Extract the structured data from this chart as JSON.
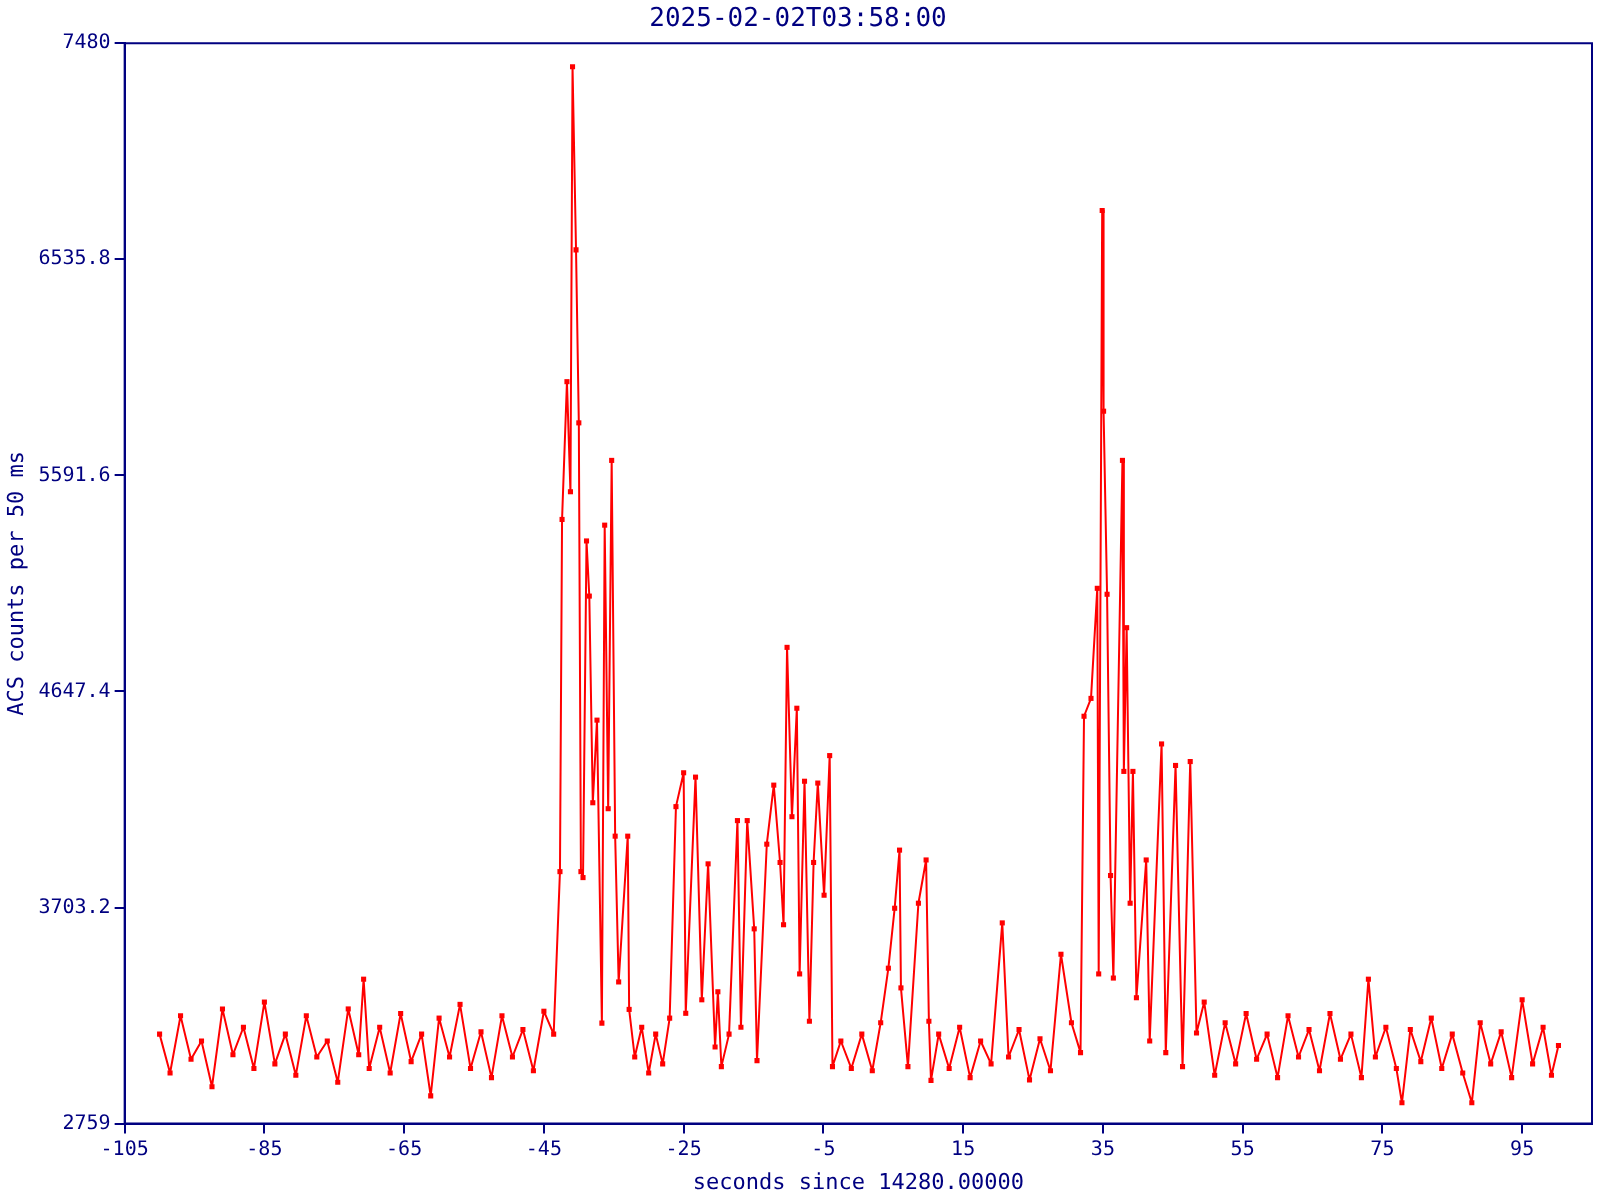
{
  "chart_data": {
    "type": "line",
    "title": "2025-02-02T03:58:00",
    "xlabel": "seconds since 14280.00000",
    "ylabel": "ACS counts per 50 ms",
    "x": [
      -100,
      -98.5,
      -97,
      -95.5,
      -94,
      -92.5,
      -91,
      -89.5,
      -88,
      -86.5,
      -85,
      -83.5,
      -82,
      -80.5,
      -79,
      -77.5,
      -76,
      -74.5,
      -73,
      -71.5,
      -70.8,
      -70,
      -68.5,
      -67,
      -65.5,
      -64,
      -62.5,
      -61.2,
      -60,
      -58.5,
      -57,
      -55.5,
      -54,
      -52.5,
      -51,
      -49.5,
      -48,
      -46.5,
      -45,
      -43.6,
      -42.7,
      -42.4,
      -41.7,
      -41.2,
      -40.9,
      -40.4,
      -40.0,
      -39.7,
      -39.4,
      -38.9,
      -38.5,
      -38.0,
      -37.4,
      -36.7,
      -36.3,
      -35.8,
      -35.3,
      -34.8,
      -34.3,
      -33.0,
      -32.8,
      -32.0,
      -31,
      -30,
      -29,
      -28,
      -27,
      -26.1,
      -25.0,
      -24.7,
      -23.3,
      -22.4,
      -21.5,
      -20.5,
      -20.1,
      -19.6,
      -18.5,
      -17.3,
      -16.8,
      -15.9,
      -14.9,
      -14.5,
      -13.1,
      -12.1,
      -11.2,
      -10.7,
      -10.2,
      -9.5,
      -8.8,
      -8.4,
      -7.7,
      -7.0,
      -6.4,
      -5.8,
      -4.9,
      -4.1,
      -3.7,
      -2.5,
      -1,
      0.5,
      2,
      3.2,
      4.3,
      5.2,
      5.9,
      6.1,
      7.1,
      8.6,
      9.7,
      10.1,
      10.4,
      11.5,
      13,
      14.5,
      16,
      17.5,
      19,
      20.6,
      21.5,
      23,
      24.5,
      26,
      27.5,
      29.0,
      30.5,
      31.8,
      32.3,
      33.3,
      34.2,
      34.4,
      34.9,
      35.1,
      35.6,
      36.1,
      36.5,
      37.8,
      38.0,
      38.4,
      38.9,
      39.3,
      39.8,
      41.2,
      41.7,
      43.4,
      44.0,
      45.4,
      46.4,
      47.5,
      48.4,
      49.5,
      51,
      52.5,
      54,
      55.5,
      57,
      58.5,
      60,
      61.5,
      63,
      64.5,
      66,
      67.5,
      69,
      70.5,
      72,
      73.0,
      74,
      75.5,
      77,
      77.8,
      79,
      80.5,
      82,
      83.5,
      85,
      86.5,
      87.8,
      89,
      90.5,
      92,
      93.5,
      95,
      96.5,
      98,
      99.2,
      100.2
    ],
    "values": [
      3150,
      2980,
      3230,
      3040,
      3120,
      2920,
      3260,
      3060,
      3180,
      3000,
      3290,
      3020,
      3150,
      2970,
      3230,
      3050,
      3120,
      2940,
      3260,
      3060,
      3390,
      3000,
      3180,
      2980,
      3240,
      3030,
      3150,
      2880,
      3220,
      3050,
      3280,
      3000,
      3160,
      2960,
      3230,
      3050,
      3170,
      2990,
      3250,
      3150,
      3860,
      5399,
      6001,
      5520,
      7377,
      6577,
      5821,
      3860,
      3834,
      5305,
      5064,
      4161,
      4522,
      3198,
      5374,
      4135,
      5657,
      4015,
      3378,
      4015,
      3258,
      3050,
      3180,
      2980,
      3150,
      3020,
      3220,
      4144,
      4292,
      3241,
      4273,
      3300,
      3894,
      3094,
      3335,
      3008,
      3150,
      4083,
      3180,
      4083,
      3610,
      3034,
      3980,
      4238,
      3900,
      3628,
      4840,
      4100,
      4574,
      3413,
      4255,
      3206,
      3900,
      4247,
      3757,
      4367,
      3008,
      3120,
      3000,
      3150,
      2990,
      3200,
      3438,
      3700,
      3954,
      3352,
      3008,
      3722,
      3911,
      3206,
      2948,
      3150,
      3000,
      3180,
      2960,
      3120,
      3020,
      3636,
      3050,
      3170,
      2950,
      3130,
      2990,
      3499,
      3200,
      3069,
      4539,
      4617,
      5098,
      3413,
      6749,
      5872,
      5072,
      3843,
      3395,
      5657,
      4298,
      4926,
      3722,
      4298,
      3309,
      3911,
      3120,
      4418,
      3069,
      4324,
      3008,
      4341,
      3155,
      3290,
      2970,
      3200,
      3020,
      3240,
      3040,
      3150,
      2960,
      3230,
      3050,
      3170,
      2990,
      3240,
      3040,
      3150,
      2960,
      3390,
      3050,
      3180,
      3000,
      2850,
      3170,
      3030,
      3220,
      3000,
      3150,
      2980,
      2850,
      3200,
      3020,
      3160,
      2960,
      3300,
      3020,
      3180,
      2970,
      3100
    ],
    "color": "#ff0000",
    "marker": "square",
    "line_style": "solid",
    "grid": false,
    "xlim": [
      -105,
      105
    ],
    "xticks": [
      -105,
      -85,
      -65,
      -45,
      -25,
      -5,
      15,
      35,
      55,
      75,
      95
    ],
    "ylim": [
      2759,
      7480
    ],
    "yticks": [
      2759,
      3703.2,
      4647.4,
      5591.6,
      6535.8,
      7480
    ]
  }
}
